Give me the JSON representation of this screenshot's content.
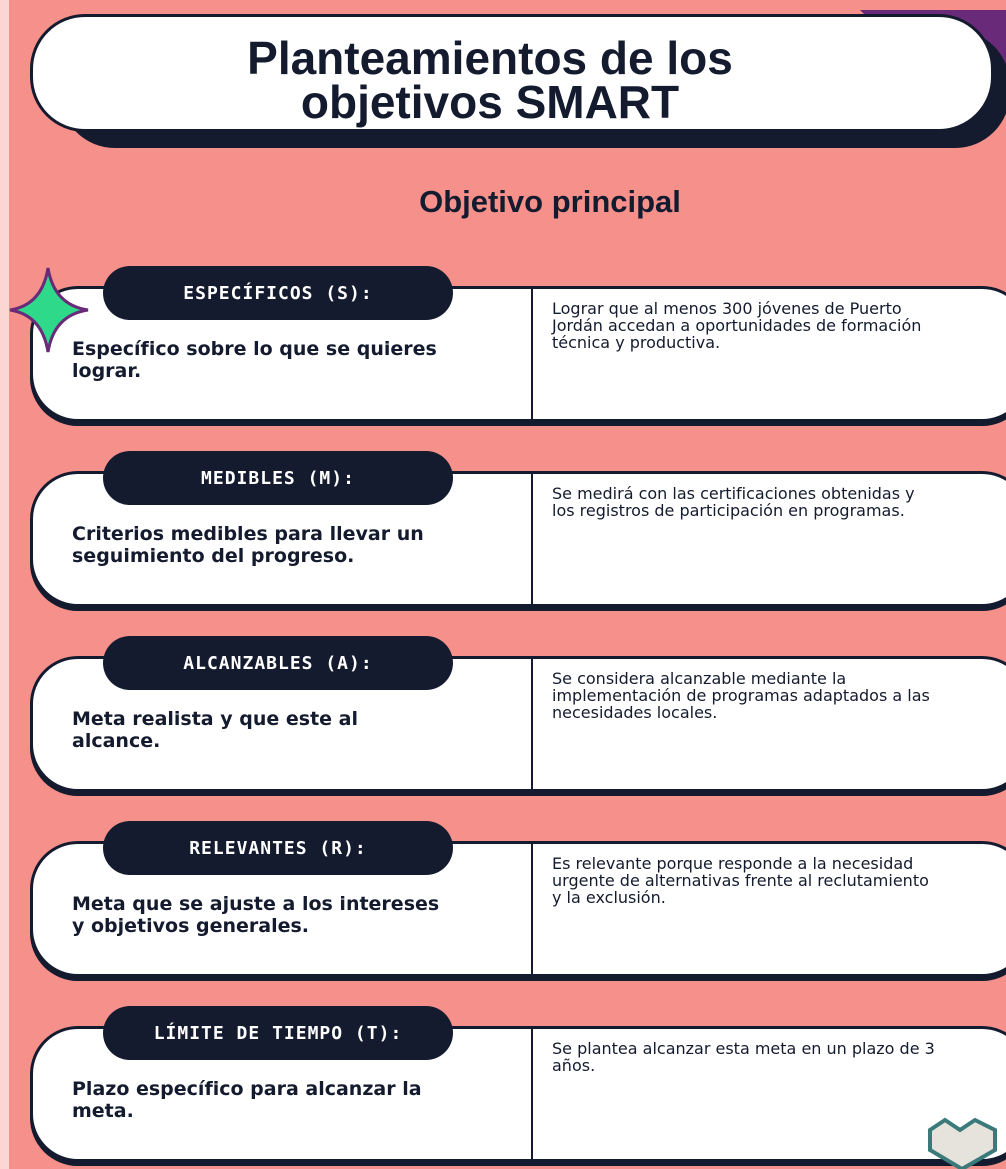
{
  "header": {
    "title": "Planteamientos de los objetivos SMART",
    "subtitle": "Objetivo principal"
  },
  "cards": [
    {
      "label": "ESPECÍFICOS (S):",
      "description": "Específico sobre lo que se quieres lograr.",
      "detail": "Lograr que al menos 300 jóvenes de Puerto Jordán accedan a oportunidades de formación técnica y productiva."
    },
    {
      "label": "MEDIBLES (M):",
      "description": "Criterios medibles para llevar un seguimiento del progreso.",
      "detail": "Se medirá con las certificaciones obtenidas y los registros de participación en programas."
    },
    {
      "label": "ALCANZABLES (A):",
      "description": "Meta realista y que este al alcance.",
      "detail": "Se considera alcanzable mediante la implementación de programas adaptados a las necesidades locales."
    },
    {
      "label": "RELEVANTES (R):",
      "description": "Meta que se ajuste a los intereses y objetivos generales.",
      "detail": "Es relevante porque responde a la necesidad urgente de alternativas frente al reclutamiento y la exclusión."
    },
    {
      "label": "LÍMITE DE TIEMPO (T):",
      "description": "Plazo específico para alcanzar la meta.",
      "detail": "Se plantea alcanzar esta meta en un plazo de 3 años."
    }
  ]
}
